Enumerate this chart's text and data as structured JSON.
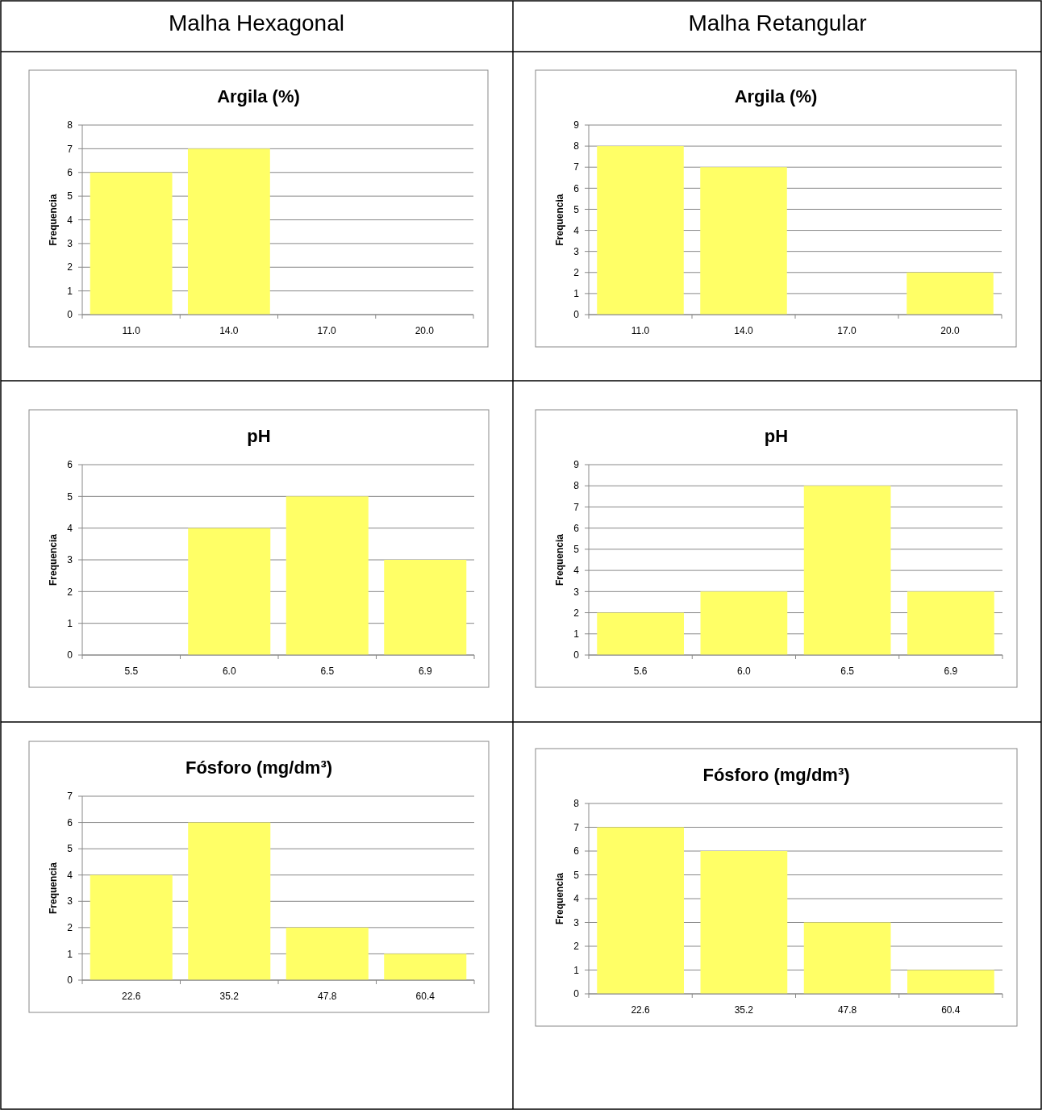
{
  "chart_data": [
    {
      "type": "bar",
      "annotations": [
        "Malha Hexagonal"
      ],
      "title": "Argila (%)",
      "ylabel": "Frequencia",
      "categories": [
        "11.0",
        "14.0",
        "17.0",
        "20.0"
      ],
      "values": [
        6,
        7,
        0,
        0
      ],
      "color": "#ffff66",
      "ylim": [
        0,
        8
      ],
      "yticks": [
        0,
        1,
        2,
        3,
        4,
        5,
        6,
        7,
        8
      ],
      "grid": "y"
    },
    {
      "type": "bar",
      "annotations": [
        "Malha Retangular"
      ],
      "title": "Argila (%)",
      "ylabel": "Frequencia",
      "categories": [
        "11.0",
        "14.0",
        "17.0",
        "20.0"
      ],
      "values": [
        8,
        7,
        0,
        2
      ],
      "color": "#ffff66",
      "ylim": [
        0,
        9
      ],
      "yticks": [
        0,
        1,
        2,
        3,
        4,
        5,
        6,
        7,
        8,
        9
      ],
      "grid": "y"
    },
    {
      "type": "bar",
      "title": "pH",
      "ylabel": "Frequencia",
      "categories": [
        "5.5",
        "6.0",
        "6.5",
        "6.9"
      ],
      "values": [
        0,
        4,
        5,
        3
      ],
      "color": "#ffff66",
      "ylim": [
        0,
        6
      ],
      "yticks": [
        0,
        1,
        2,
        3,
        4,
        5,
        6
      ],
      "grid": "y"
    },
    {
      "type": "bar",
      "title": "pH",
      "ylabel": "Frequencia",
      "categories": [
        "5.6",
        "6.0",
        "6.5",
        "6.9"
      ],
      "values": [
        2,
        3,
        8,
        3
      ],
      "color": "#ffff66",
      "ylim": [
        0,
        9
      ],
      "yticks": [
        0,
        1,
        2,
        3,
        4,
        5,
        6,
        7,
        8,
        9
      ],
      "grid": "y"
    },
    {
      "type": "bar",
      "title": "Fósforo (mg/dm³)",
      "ylabel": "Frequencia",
      "categories": [
        "22.6",
        "35.2",
        "47.8",
        "60.4"
      ],
      "values": [
        4,
        6,
        2,
        1
      ],
      "color": "#ffff66",
      "ylim": [
        0,
        7
      ],
      "yticks": [
        0,
        1,
        2,
        3,
        4,
        5,
        6,
        7
      ],
      "grid": "y"
    },
    {
      "type": "bar",
      "title": "Fósforo (mg/dm³)",
      "ylabel": "Frequencia",
      "categories": [
        "22.6",
        "35.2",
        "47.8",
        "60.4"
      ],
      "values": [
        7,
        6,
        3,
        1
      ],
      "color": "#ffff66",
      "ylim": [
        0,
        8
      ],
      "yticks": [
        0,
        1,
        2,
        3,
        4,
        5,
        6,
        7,
        8
      ],
      "grid": "y"
    }
  ]
}
